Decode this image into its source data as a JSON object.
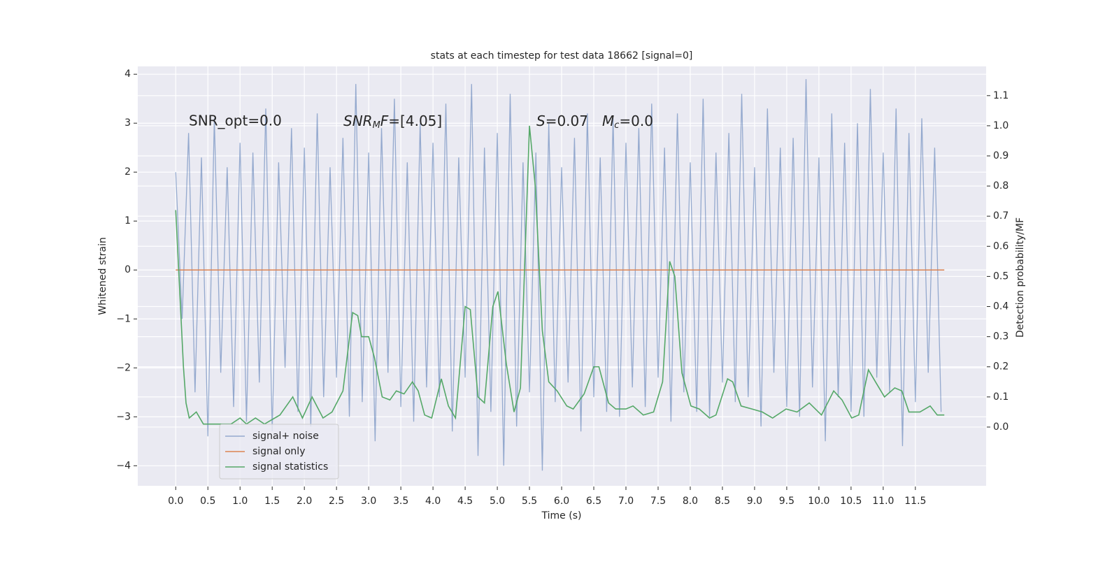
{
  "chart_data": {
    "type": "line",
    "title": "stats at each timestep for test data 18662 [signal=0]",
    "xlabel": "Time (s)",
    "ylabel": "Whitened strain",
    "y2label": "Detection probability/MF",
    "annotations": [
      "SNR_opt=0.0",
      [
        "SNR",
        "M",
        "F",
        "=[4.05]"
      ],
      [
        "S",
        "=0.07",
        "M",
        "c",
        "=0.0"
      ]
    ],
    "xlim": [
      -0.59,
      12.6
    ],
    "ylim": [
      -4.41,
      4.16
    ],
    "y2lim": [
      -0.195,
      1.197
    ],
    "xticks": [
      {
        "value": 0,
        "label": "0.0"
      },
      0.5,
      {
        "value": 1,
        "label": "1.0"
      },
      1.5,
      {
        "value": 2,
        "label": "2.0"
      },
      2.5,
      {
        "value": 3,
        "label": "3.0"
      },
      3.5,
      {
        "value": 4,
        "label": "4.0"
      },
      4.5,
      {
        "value": 5,
        "label": "5.0"
      },
      5.5,
      {
        "value": 6,
        "label": "6.0"
      },
      6.5,
      {
        "value": 7,
        "label": "7.0"
      },
      7.5,
      {
        "value": 8,
        "label": "8.0"
      },
      8.5,
      {
        "value": 9,
        "label": "9.0"
      },
      9.5,
      {
        "value": 10,
        "label": "10.0"
      },
      10.5,
      {
        "value": 11,
        "label": "11.0"
      },
      11.5
    ],
    "yticks": [
      {
        "value": -4,
        "label": "−4"
      },
      {
        "value": -3,
        "label": "−3"
      },
      {
        "value": -2,
        "label": "−2"
      },
      {
        "value": -1,
        "label": "−1"
      },
      0,
      1,
      2,
      3,
      4
    ],
    "y2ticks": [
      {
        "value": 0,
        "label": "0.0"
      },
      0.1,
      0.2,
      0.3,
      0.4,
      0.5,
      0.6,
      0.7,
      0.8,
      0.9,
      {
        "value": 1,
        "label": "1.0"
      },
      1.1
    ],
    "grid": true,
    "legend": "lower left",
    "series": [
      {
        "name": "signal+ noise",
        "color": "#4c72b0",
        "x": [
          0,
          0.1,
          0.2,
          0.3,
          0.4,
          0.5,
          0.6,
          0.7,
          0.8,
          0.9,
          1,
          1.1,
          1.2,
          1.3,
          1.4,
          1.5,
          1.6,
          1.7,
          1.8,
          1.9,
          2,
          2.1,
          2.2,
          2.3,
          2.4,
          2.5,
          2.6,
          2.7,
          2.8,
          2.9,
          3,
          3.1,
          3.2,
          3.3,
          3.4,
          3.5,
          3.6,
          3.7,
          3.8,
          3.9,
          4,
          4.1,
          4.2,
          4.3,
          4.4,
          4.5,
          4.6,
          4.7,
          4.8,
          4.9,
          5,
          5.1,
          5.2,
          5.3,
          5.4,
          5.5,
          5.6,
          5.7,
          5.8,
          5.9,
          6,
          6.1,
          6.2,
          6.3,
          6.4,
          6.5,
          6.6,
          6.7,
          6.8,
          6.9,
          7,
          7.1,
          7.2,
          7.3,
          7.4,
          7.5,
          7.6,
          7.7,
          7.8,
          7.9,
          8,
          8.1,
          8.2,
          8.3,
          8.4,
          8.5,
          8.6,
          8.7,
          8.8,
          8.9,
          9,
          9.1,
          9.2,
          9.3,
          9.4,
          9.5,
          9.6,
          9.7,
          9.8,
          9.9,
          10,
          10.1,
          10.2,
          10.3,
          10.4,
          10.5,
          10.6,
          10.7,
          10.8,
          10.9,
          11,
          11.1,
          11.2,
          11.3,
          11.4,
          11.5,
          11.6,
          11.7,
          11.8,
          11.9
        ],
        "values": [
          2.0,
          -1.0,
          2.8,
          -2.5,
          2.3,
          -3.4,
          3.1,
          -2.1,
          2.1,
          -2.8,
          2.6,
          -3.1,
          2.4,
          -2.3,
          3.3,
          -3.3,
          2.2,
          -2.0,
          2.9,
          -2.9,
          2.5,
          -3.2,
          3.2,
          -2.6,
          2.1,
          -2.2,
          2.7,
          -3.0,
          3.8,
          -2.7,
          2.4,
          -3.5,
          2.9,
          -2.1,
          3.5,
          -2.8,
          2.2,
          -3.1,
          3.0,
          -2.4,
          2.6,
          -2.6,
          3.4,
          -3.3,
          2.3,
          -2.2,
          3.8,
          -3.8,
          2.5,
          -2.9,
          2.8,
          -4.0,
          3.6,
          -3.2,
          2.2,
          -2.5,
          2.4,
          -4.1,
          3.0,
          -2.7,
          2.1,
          -2.3,
          2.7,
          -3.3,
          3.2,
          -2.6,
          2.3,
          -2.9,
          3.1,
          -3.0,
          2.6,
          -2.4,
          2.9,
          -2.8,
          3.4,
          -2.2,
          2.5,
          -3.1,
          3.2,
          -2.5,
          2.2,
          -2.9,
          3.5,
          -3.0,
          2.4,
          -2.3,
          2.8,
          -2.7,
          3.6,
          -2.6,
          2.1,
          -3.2,
          3.3,
          -2.1,
          2.5,
          -2.8,
          2.7,
          -3.0,
          3.9,
          -2.4,
          2.3,
          -3.5,
          3.2,
          -2.6,
          2.6,
          -2.9,
          3.0,
          -3.0,
          3.7,
          -2.2,
          2.4,
          -2.5,
          3.3,
          -3.6,
          2.8,
          -2.7,
          3.1,
          -2.1,
          2.5,
          -2.9
        ]
      },
      {
        "name": "signal only",
        "color": "#dd8452",
        "x": [
          0,
          11.95
        ],
        "values": [
          0,
          0
        ]
      },
      {
        "name": "signal statistics",
        "color": "#55a868",
        "axis": "y2",
        "x": [
          0,
          0.12,
          0.16,
          0.21,
          0.32,
          0.43,
          0.86,
          1.0,
          1.1,
          1.24,
          1.38,
          1.62,
          1.82,
          1.97,
          2.12,
          2.29,
          2.43,
          2.6,
          2.75,
          2.83,
          2.89,
          3.0,
          3.09,
          3.21,
          3.33,
          3.43,
          3.55,
          3.68,
          3.77,
          3.87,
          3.98,
          4.13,
          4.24,
          4.35,
          4.5,
          4.58,
          4.7,
          4.8,
          4.93,
          5.01,
          5.14,
          5.26,
          5.36,
          5.5,
          5.59,
          5.7,
          5.8,
          5.93,
          6.08,
          6.18,
          6.35,
          6.5,
          6.58,
          6.73,
          6.84,
          7.0,
          7.11,
          7.27,
          7.43,
          7.57,
          7.68,
          7.76,
          7.87,
          8.01,
          8.14,
          8.3,
          8.4,
          8.58,
          8.66,
          8.79,
          8.96,
          9.12,
          9.28,
          9.49,
          9.66,
          9.85,
          10.04,
          10.23,
          10.36,
          10.51,
          10.62,
          10.77,
          10.88,
          11.02,
          11.18,
          11.29,
          11.4,
          11.57,
          11.73,
          11.84,
          11.95
        ],
        "values": [
          0.72,
          0.2,
          0.08,
          0.03,
          0.05,
          0.01,
          0.01,
          0.03,
          0.01,
          0.03,
          0.01,
          0.04,
          0.1,
          0.03,
          0.1,
          0.03,
          0.05,
          0.12,
          0.38,
          0.37,
          0.3,
          0.3,
          0.23,
          0.1,
          0.09,
          0.12,
          0.11,
          0.15,
          0.12,
          0.04,
          0.03,
          0.16,
          0.07,
          0.03,
          0.4,
          0.39,
          0.1,
          0.08,
          0.4,
          0.45,
          0.21,
          0.05,
          0.13,
          1.0,
          0.8,
          0.32,
          0.15,
          0.12,
          0.07,
          0.06,
          0.11,
          0.2,
          0.2,
          0.08,
          0.06,
          0.06,
          0.07,
          0.04,
          0.05,
          0.15,
          0.55,
          0.5,
          0.18,
          0.07,
          0.06,
          0.03,
          0.04,
          0.16,
          0.15,
          0.07,
          0.06,
          0.05,
          0.03,
          0.06,
          0.05,
          0.08,
          0.04,
          0.12,
          0.09,
          0.03,
          0.04,
          0.19,
          0.15,
          0.1,
          0.13,
          0.12,
          0.05,
          0.05,
          0.07,
          0.04,
          0.04
        ]
      }
    ]
  }
}
